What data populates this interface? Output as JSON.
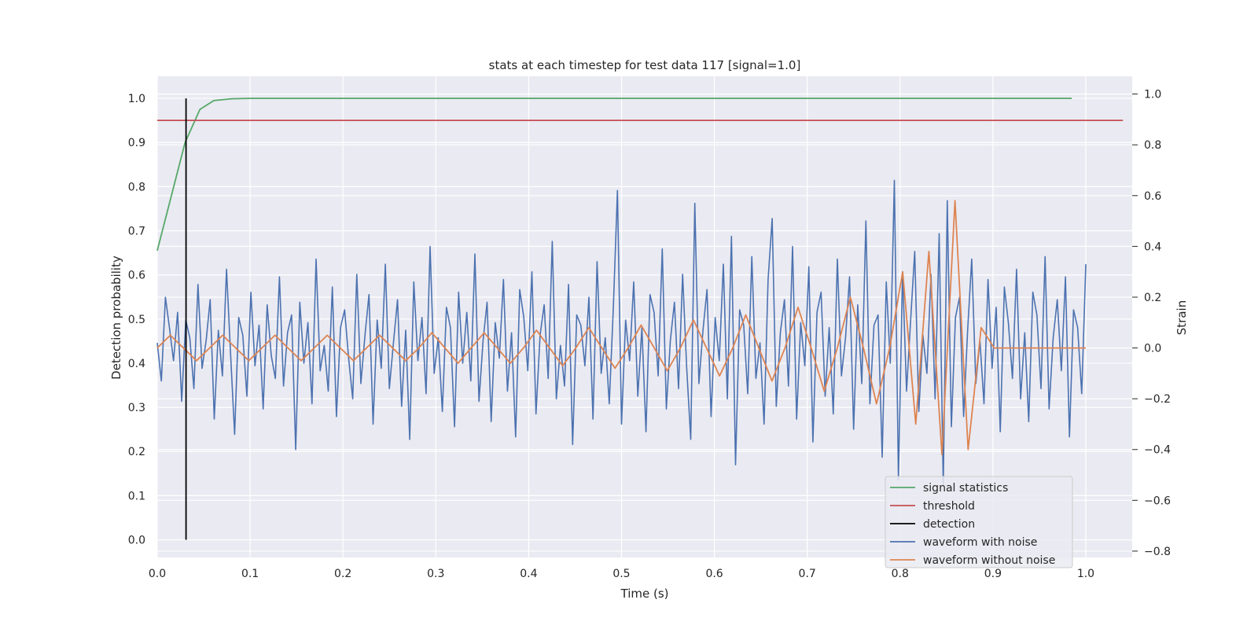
{
  "chart_data": {
    "type": "line",
    "title": "stats at each timestep for test data 117 [signal=1.0]",
    "xlabel": "Time (s)",
    "ylabel_left": "Detection probability",
    "ylabel_right": "Strain",
    "xlim": [
      0.0,
      1.05
    ],
    "ylim_left": [
      -0.04,
      1.05
    ],
    "ylim_right": [
      -0.825,
      1.07
    ],
    "xticks": [
      "0.0",
      "0.1",
      "0.2",
      "0.3",
      "0.4",
      "0.5",
      "0.6",
      "0.7",
      "0.8",
      "0.9",
      "1.0"
    ],
    "yticks_left": [
      "0.0",
      "0.1",
      "0.2",
      "0.3",
      "0.4",
      "0.5",
      "0.6",
      "0.7",
      "0.8",
      "0.9",
      "1.0"
    ],
    "yticks_right": [
      "−0.8",
      "−0.6",
      "−0.4",
      "−0.2",
      "0.0",
      "0.2",
      "0.4",
      "0.6",
      "0.8",
      "1.0"
    ],
    "grid": true,
    "legend_location": "lower right",
    "series": [
      {
        "name": "signal statistics",
        "axis": "left",
        "color": "#55a868",
        "x": [
          0.0,
          0.03,
          0.046,
          0.061,
          0.08,
          0.1,
          0.2,
          0.3,
          0.4,
          0.5,
          0.6,
          0.7,
          0.8,
          0.9,
          0.985
        ],
        "y": [
          0.655,
          0.9,
          0.975,
          0.995,
          0.999,
          1.0,
          1.0,
          1.0,
          1.0,
          1.0,
          1.0,
          1.0,
          1.0,
          1.0,
          1.0
        ]
      },
      {
        "name": "threshold",
        "axis": "left",
        "color": "#c44e52",
        "x": [
          0.0,
          1.04
        ],
        "y": [
          0.95,
          0.95
        ]
      },
      {
        "name": "detection",
        "axis": "left",
        "color": "#000000",
        "x": [
          0.031,
          0.031
        ],
        "y": [
          0.0,
          1.0
        ]
      },
      {
        "name": "waveform with noise",
        "axis": "right",
        "color": "#4c72b0",
        "x_range": [
          0.0,
          1.0
        ],
        "y": [
          0.02,
          -0.13,
          0.2,
          0.08,
          -0.05,
          0.14,
          -0.21,
          0.11,
          0.04,
          -0.16,
          0.25,
          -0.08,
          0.03,
          0.19,
          -0.28,
          0.07,
          -0.11,
          0.31,
          -0.02,
          -0.34,
          0.12,
          0.05,
          -0.19,
          0.22,
          -0.07,
          0.09,
          -0.24,
          0.17,
          -0.03,
          -0.12,
          0.28,
          -0.15,
          0.06,
          0.13,
          -0.4,
          0.18,
          -0.06,
          0.1,
          -0.22,
          0.35,
          -0.09,
          0.01,
          -0.17,
          0.24,
          -0.27,
          0.08,
          0.15,
          -0.04,
          -0.2,
          0.29,
          -0.14,
          0.05,
          0.21,
          -0.3,
          0.11,
          -0.08,
          0.33,
          -0.16,
          0.02,
          0.19,
          -0.23,
          0.07,
          -0.36,
          0.26,
          -0.05,
          0.12,
          -0.18,
          0.4,
          -0.1,
          0.04,
          -0.25,
          0.16,
          0.08,
          -0.31,
          0.22,
          -0.06,
          0.14,
          -0.13,
          0.37,
          -0.21,
          0.03,
          0.18,
          -0.29,
          0.1,
          -0.04,
          0.27,
          -0.17,
          0.06,
          -0.35,
          0.23,
          0.12,
          -0.09,
          0.3,
          -0.26,
          0.05,
          0.17,
          -0.12,
          0.42,
          -0.2,
          0.01,
          -0.15,
          0.25,
          -0.38,
          0.13,
          0.09,
          -0.07,
          0.2,
          -0.28,
          0.34,
          -0.1,
          0.04,
          -0.22,
          0.16,
          0.62,
          -0.3,
          0.11,
          -0.05,
          0.26,
          -0.19,
          0.08,
          -0.33,
          0.21,
          0.14,
          -0.11,
          0.39,
          -0.24,
          0.03,
          0.18,
          -0.16,
          0.29,
          -0.08,
          -0.36,
          0.57,
          -0.14,
          0.07,
          0.23,
          -0.27,
          0.12,
          -0.05,
          0.33,
          -0.2,
          0.44,
          -0.46,
          0.15,
          0.09,
          -0.18,
          0.36,
          -0.12,
          0.02,
          -0.3,
          0.27,
          0.51,
          -0.23,
          0.06,
          0.19,
          -0.15,
          0.4,
          -0.28,
          0.1,
          -0.07,
          0.32,
          -0.37,
          0.14,
          0.22,
          -0.19,
          0.08,
          -0.26,
          0.35,
          -0.11,
          0.04,
          0.28,
          -0.32,
          0.17,
          -0.14,
          0.5,
          -0.22,
          0.09,
          0.13,
          -0.43,
          0.26,
          -0.06,
          0.66,
          -0.52,
          0.3,
          -0.17,
          0.11,
          0.38,
          -0.25,
          0.05,
          -0.1,
          0.29,
          -0.2,
          0.45,
          -0.54,
          0.58,
          -0.31,
          0.12,
          0.2,
          -0.27,
          0.07,
          0.35,
          -0.14,
          0.03,
          -0.22,
          0.27,
          -0.08,
          0.16,
          -0.33,
          0.24,
          0.1,
          -0.12,
          0.31,
          -0.2,
          0.06,
          -0.29,
          0.22,
          0.13,
          -0.16,
          0.36,
          -0.24,
          0.04,
          0.19,
          -0.09,
          0.28,
          -0.35,
          0.15,
          0.08,
          -0.18,
          0.33
        ]
      },
      {
        "name": "waveform without noise",
        "axis": "right",
        "color": "#dd8452",
        "x_range": [
          0.0,
          1.0
        ],
        "y": [
          0.0,
          0.05,
          0.0,
          -0.05,
          0.0,
          0.05,
          0.0,
          -0.05,
          0.0,
          0.05,
          0.0,
          -0.05,
          0.0,
          0.05,
          0.0,
          -0.05,
          0.0,
          0.05,
          0.0,
          -0.05,
          0.0,
          0.06,
          0.0,
          -0.06,
          0.0,
          0.06,
          0.0,
          -0.06,
          0.0,
          0.07,
          0.0,
          -0.07,
          0.0,
          0.08,
          0.0,
          -0.08,
          0.0,
          0.09,
          0.0,
          -0.09,
          0.0,
          0.11,
          0.0,
          -0.11,
          0.0,
          0.13,
          0.0,
          -0.13,
          0.0,
          0.16,
          0.0,
          -0.17,
          0.0,
          0.2,
          0.0,
          -0.22,
          0.0,
          0.3,
          -0.3,
          0.38,
          -0.42,
          0.58,
          -0.4,
          0.08,
          0.0,
          0.0,
          0.0,
          0.0,
          0.0,
          0.0,
          0.0,
          0.0
        ]
      }
    ]
  }
}
